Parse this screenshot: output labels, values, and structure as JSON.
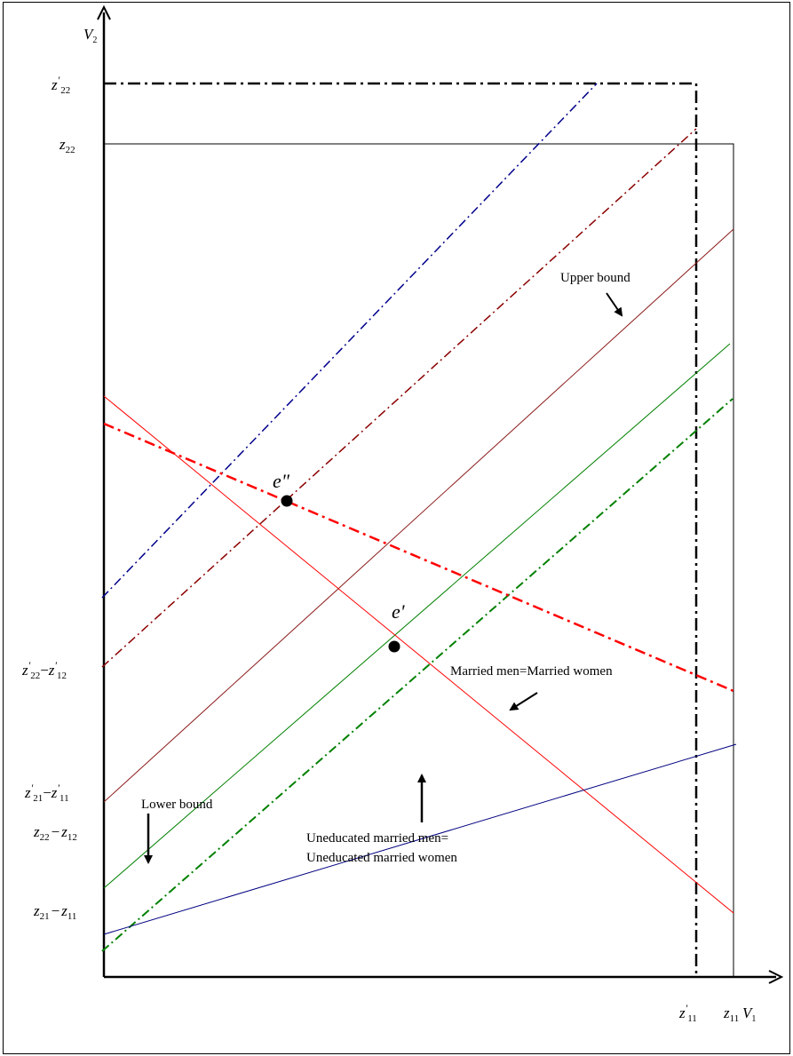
{
  "axes": {
    "x_label": "V",
    "x_label_sub": "1",
    "y_label": "V",
    "y_label_sub": "2"
  },
  "y_ticks": {
    "z22p": {
      "main": "z",
      "sup": "'",
      "sub": "22"
    },
    "z22": {
      "main": "z",
      "sub": "22"
    },
    "z22p_minus_z12p": {
      "a": "z",
      "a_sup": "'",
      "a_sub": "22",
      "op": "−",
      "b": "z",
      "b_sup": "'",
      "b_sub": "12"
    },
    "z21p_minus_z11p": {
      "a": "z",
      "a_sup": "'",
      "a_sub": "21",
      "op": "−",
      "b": "z",
      "b_sup": "'",
      "b_sub": "11"
    },
    "z22_minus_z12": {
      "a": "z",
      "a_sub": "22",
      "op": "−",
      "b": "z",
      "b_sub": "12"
    },
    "z21_minus_z11": {
      "a": "z",
      "a_sub": "21",
      "op": "−",
      "b": "z",
      "b_sub": "11"
    }
  },
  "x_ticks": {
    "z11p": {
      "main": "z",
      "sup": "'",
      "sub": "11"
    },
    "z11": {
      "main": "z",
      "sub": "11"
    }
  },
  "points": {
    "e_double_prime": "e\"",
    "e_prime": "e'"
  },
  "annotations": {
    "upper_bound": "Upper bound",
    "lower_bound": "Lower bound",
    "married_equal": "Married men=Married women",
    "uneducated_line1": "Uneducated married men=",
    "uneducated_line2": "Uneducated married women"
  },
  "colors": {
    "blue_dashdot": "#00008b",
    "darkred_dashdot": "#8b0000",
    "darkred_solid": "#8b1a1a",
    "green_solid": "#008000",
    "green_dashdot": "#008000",
    "red_solid": "#ff0000",
    "red_dashdot": "#ff0000",
    "navy_solid": "#000080",
    "axis": "#000000"
  }
}
